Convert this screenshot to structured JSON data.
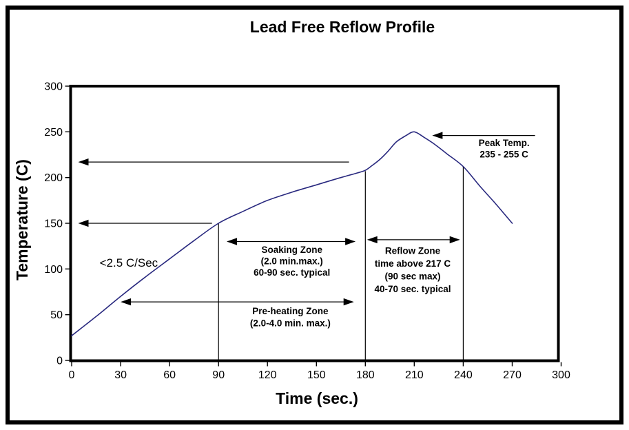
{
  "figure": {
    "title": "Lead Free Reflow Profile"
  },
  "chart_data": {
    "type": "line",
    "title": "Lead Free Reflow Profile",
    "xlabel": "Time (sec.)",
    "ylabel": "Temperature (C)",
    "xlim": [
      0,
      300
    ],
    "ylim": [
      0,
      300
    ],
    "x_ticks": [
      0,
      30,
      60,
      90,
      120,
      150,
      180,
      210,
      240,
      270,
      300
    ],
    "y_ticks": [
      0,
      50,
      100,
      150,
      200,
      250,
      300
    ],
    "grid": false,
    "legend": "none",
    "line_color": "#29297f",
    "series": [
      {
        "name": "reflow-temperature-profile",
        "points": [
          [
            0,
            27
          ],
          [
            15,
            48
          ],
          [
            30,
            70
          ],
          [
            45,
            91
          ],
          [
            60,
            111
          ],
          [
            75,
            131
          ],
          [
            90,
            150
          ],
          [
            105,
            163
          ],
          [
            120,
            175
          ],
          [
            135,
            184
          ],
          [
            150,
            192
          ],
          [
            165,
            200
          ],
          [
            175,
            205
          ],
          [
            180,
            208
          ],
          [
            184,
            213
          ],
          [
            189,
            220
          ],
          [
            194,
            229
          ],
          [
            199,
            239
          ],
          [
            205,
            246
          ],
          [
            210,
            250
          ],
          [
            216,
            244
          ],
          [
            222,
            237
          ],
          [
            230,
            226
          ],
          [
            240,
            212
          ],
          [
            250,
            191
          ],
          [
            260,
            171
          ],
          [
            270,
            150
          ]
        ]
      }
    ],
    "peak_temp_c": 250,
    "peak_time_sec": 210,
    "zone_boundaries": [
      {
        "time": 90,
        "curve_temp": 150
      },
      {
        "time": 180,
        "curve_temp": 207
      },
      {
        "time": 240,
        "curve_temp": 212
      }
    ],
    "level_arrows": [
      {
        "name": "temp-217-reference-arrow",
        "temp": 217,
        "from_time": 170,
        "to_time": 4
      },
      {
        "name": "temp-150-reference-arrow",
        "temp": 150,
        "from_time": 86,
        "to_time": 4
      }
    ],
    "span_arrows": [
      {
        "name": "soaking-zone-arrow",
        "temp": 130,
        "from_time": 95,
        "to_time": 174
      },
      {
        "name": "preheating-zone-arrow",
        "temp": 64,
        "from_time": 30,
        "to_time": 173
      },
      {
        "name": "reflow-zone-arrow",
        "temp": 132,
        "from_time": 181,
        "to_time": 238
      }
    ],
    "pointer_arrows": [
      {
        "name": "peak-temp-arrow",
        "temp": 246,
        "from_time": 284,
        "to_time": 221
      }
    ],
    "annotations": [
      {
        "name": "ramp-rate-label",
        "lines": [
          "<2.5 C/Sec"
        ],
        "x_time": 35,
        "y_temp": 107,
        "bold": false,
        "size": 17,
        "line_height": 18
      },
      {
        "name": "soaking-zone-label",
        "lines": [
          "Soaking Zone",
          "(2.0 min.max.)",
          "60-90 sec. typical"
        ],
        "x_time": 135,
        "y_temp": 121,
        "bold": true,
        "size": 13.5,
        "line_height": 16.5
      },
      {
        "name": "preheating-zone-label",
        "lines": [
          "Pre-heating Zone",
          "(2.0-4.0 min. max.)"
        ],
        "x_time": 134,
        "y_temp": 54,
        "bold": true,
        "size": 13.5,
        "line_height": 17.5
      },
      {
        "name": "reflow-zone-label",
        "lines": [
          "Reflow Zone",
          "time above 217 C",
          "(90 sec max)",
          "40-70 sec. typical"
        ],
        "x_time": 209,
        "y_temp": 120,
        "bold": true,
        "size": 13.5,
        "line_height": 18.5
      },
      {
        "name": "peak-temp-label",
        "lines": [
          "Peak Temp.",
          "235 - 255 C"
        ],
        "x_time": 265,
        "y_temp": 238,
        "bold": true,
        "size": 13.5,
        "line_height": 16.5
      }
    ]
  }
}
